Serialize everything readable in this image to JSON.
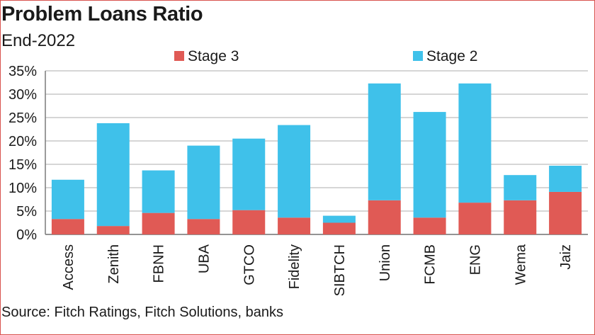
{
  "chart_data": {
    "type": "bar",
    "stacked": true,
    "title": "Problem Loans Ratio",
    "subtitle": "End-2022",
    "source": "Source: Fitch Ratings, Fitch Solutions, banks",
    "categories": [
      "Access",
      "Zenith",
      "FBNH",
      "UBA",
      "GTCO",
      "Fidelity",
      "SIBTCH",
      "Union",
      "FCMB",
      "ENG",
      "Wema",
      "Jaiz"
    ],
    "series": [
      {
        "name": "Stage 3",
        "color": "#e05a55",
        "values": [
          3.3,
          1.8,
          4.6,
          3.3,
          5.2,
          3.6,
          2.5,
          7.3,
          3.6,
          6.8,
          7.3,
          9.1
        ]
      },
      {
        "name": "Stage 2",
        "color": "#3fc1ea",
        "values": [
          8.4,
          22.0,
          9.1,
          15.7,
          15.3,
          19.8,
          1.5,
          25.0,
          22.6,
          25.5,
          5.4,
          5.6
        ]
      }
    ],
    "yticks": [
      "0%",
      "5%",
      "10%",
      "15%",
      "20%",
      "25%",
      "30%",
      "35%"
    ],
    "ylim": [
      0,
      35
    ],
    "grid": true,
    "legend": "top"
  }
}
